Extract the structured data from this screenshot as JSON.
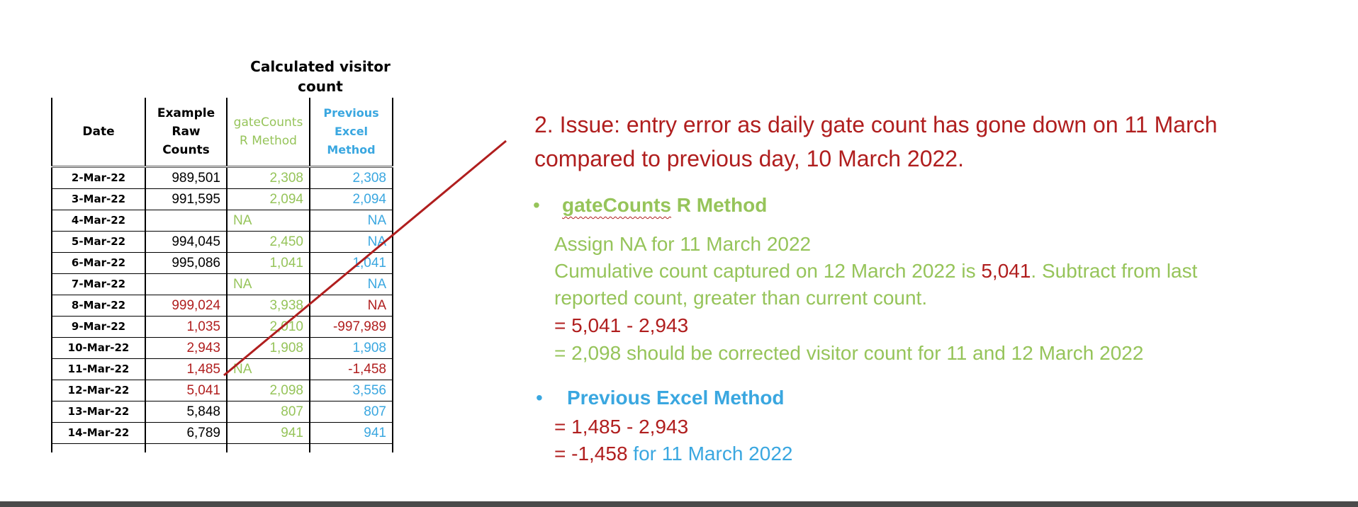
{
  "table": {
    "calculated_header": "Calculated visitor count",
    "headers": [
      "Date",
      "Example Raw Counts",
      "gateCounts R Method",
      "Previous Excel Method"
    ],
    "rows": [
      {
        "date": "2-Mar-22",
        "raw": "989,501",
        "gate": "2,308",
        "prev": "2,308"
      },
      {
        "date": "3-Mar-22",
        "raw": "991,595",
        "gate": "2,094",
        "prev": "2,094"
      },
      {
        "date": "4-Mar-22",
        "raw": "",
        "gate": "NA",
        "prev": "NA"
      },
      {
        "date": "5-Mar-22",
        "raw": "994,045",
        "gate": "2,450",
        "prev": "NA"
      },
      {
        "date": "6-Mar-22",
        "raw": "995,086",
        "gate": "1,041",
        "prev": "1,041"
      },
      {
        "date": "7-Mar-22",
        "raw": "",
        "gate": "NA",
        "prev": "NA"
      },
      {
        "date": "8-Mar-22",
        "raw": "999,024",
        "gate": "3,938",
        "prev": "NA"
      },
      {
        "date": "9-Mar-22",
        "raw": "1,035",
        "gate": "2,010",
        "prev": "-997,989"
      },
      {
        "date": "10-Mar-22",
        "raw": "2,943",
        "gate": "1,908",
        "prev": "1,908"
      },
      {
        "date": "11-Mar-22",
        "raw": "1,485",
        "gate": "NA",
        "prev": "-1,458"
      },
      {
        "date": "12-Mar-22",
        "raw": "5,041",
        "gate": "2,098",
        "prev": "3,556"
      },
      {
        "date": "13-Mar-22",
        "raw": "5,848",
        "gate": "807",
        "prev": "807"
      },
      {
        "date": "14-Mar-22",
        "raw": "6,789",
        "gate": "941",
        "prev": "941"
      }
    ]
  },
  "issue_text": "2. Issue: entry error as daily gate count has gone down on 11 March compared to previous day, 10 March 2022.",
  "section_gate": {
    "bullet": "•",
    "title_word": "gateCounts",
    "title_rest": " R Method",
    "line1": "Assign NA for 11 March 2022",
    "line2_a": "Cumulative count captured on 12 March 2022 is ",
    "line2_value": "5,041",
    "line2_b": ". Subtract from last",
    "line3": "reported count, greater than current count.",
    "line4": "= 5,041 - 2,943",
    "line5": "= 2,098 should be corrected visitor count for 11 and 12 March 2022"
  },
  "section_prev": {
    "bullet": "•",
    "title": "Previous Excel Method",
    "line1": "= 1,485 - 2,943",
    "line2_value": "= -1,458",
    "line2_rest": " for 11 March 2022"
  },
  "colors": {
    "red": "#b01e1e",
    "green": "#96c45a",
    "blue": "#3aa7e0"
  }
}
